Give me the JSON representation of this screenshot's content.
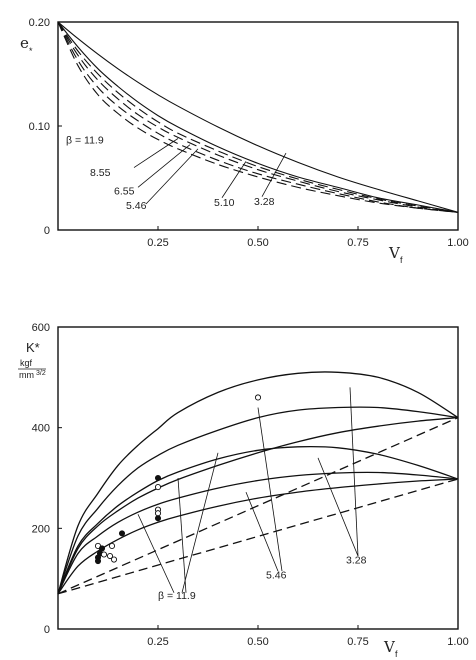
{
  "chart_data": [
    {
      "type": "line",
      "xlabel": "V",
      "xlabel_sub": "f",
      "ylabel": "e",
      "ylabel_sub": "*",
      "xlim": [
        0,
        1
      ],
      "ylim": [
        0,
        0.2
      ],
      "x_ticks": [
        "0.25",
        "0.50",
        "0.75",
        "1.00"
      ],
      "y_ticks": [
        "0",
        "0.10",
        "0.20"
      ],
      "series": [
        {
          "name": "β = 11.9",
          "style": "dashed",
          "x": [
            0,
            0.05,
            0.1,
            0.15,
            0.2,
            0.25,
            0.3,
            0.4,
            0.5,
            0.6,
            0.7,
            0.8,
            0.9,
            1.0
          ],
          "y": [
            0.2,
            0.158,
            0.13,
            0.112,
            0.098,
            0.087,
            0.078,
            0.063,
            0.051,
            0.041,
            0.033,
            0.026,
            0.021,
            0.017
          ]
        },
        {
          "name": "8.55",
          "style": "dashed",
          "x": [
            0,
            0.05,
            0.1,
            0.15,
            0.2,
            0.25,
            0.3,
            0.4,
            0.5,
            0.6,
            0.7,
            0.8,
            0.9,
            1.0
          ],
          "y": [
            0.2,
            0.163,
            0.137,
            0.119,
            0.105,
            0.093,
            0.083,
            0.067,
            0.054,
            0.044,
            0.035,
            0.027,
            0.021,
            0.017
          ]
        },
        {
          "name": "6.55",
          "style": "dashed",
          "x": [
            0,
            0.05,
            0.1,
            0.15,
            0.2,
            0.25,
            0.3,
            0.4,
            0.5,
            0.6,
            0.7,
            0.8,
            0.9,
            1.0
          ],
          "y": [
            0.2,
            0.168,
            0.144,
            0.126,
            0.111,
            0.099,
            0.089,
            0.072,
            0.058,
            0.047,
            0.037,
            0.029,
            0.022,
            0.017
          ]
        },
        {
          "name": "5.46",
          "style": "dashed",
          "x": [
            0,
            0.05,
            0.1,
            0.15,
            0.2,
            0.25,
            0.3,
            0.4,
            0.5,
            0.6,
            0.7,
            0.8,
            0.9,
            1.0
          ],
          "y": [
            0.2,
            0.172,
            0.15,
            0.132,
            0.117,
            0.104,
            0.093,
            0.076,
            0.061,
            0.049,
            0.039,
            0.03,
            0.023,
            0.017
          ]
        },
        {
          "name": "5.10",
          "style": "solid",
          "x": [
            0,
            0.05,
            0.1,
            0.15,
            0.2,
            0.25,
            0.3,
            0.4,
            0.5,
            0.6,
            0.7,
            0.8,
            0.9,
            1.0
          ],
          "y": [
            0.2,
            0.176,
            0.155,
            0.138,
            0.123,
            0.11,
            0.099,
            0.08,
            0.064,
            0.051,
            0.041,
            0.031,
            0.024,
            0.017
          ]
        },
        {
          "name": "3.28",
          "style": "solid",
          "x": [
            0,
            0.05,
            0.1,
            0.15,
            0.2,
            0.25,
            0.3,
            0.4,
            0.5,
            0.6,
            0.7,
            0.8,
            0.9,
            1.0
          ],
          "y": [
            0.2,
            0.184,
            0.169,
            0.155,
            0.142,
            0.13,
            0.119,
            0.099,
            0.081,
            0.065,
            0.051,
            0.039,
            0.028,
            0.017
          ]
        }
      ],
      "labels": [
        {
          "text": "β = 11.9",
          "x": 0.02,
          "y": 0.083
        },
        {
          "text": "8.55",
          "x": 0.08,
          "y": 0.052
        },
        {
          "text": "6.55",
          "x": 0.14,
          "y": 0.034
        },
        {
          "text": "5.46",
          "x": 0.17,
          "y": 0.02
        },
        {
          "text": "5.10",
          "x": 0.39,
          "y": 0.023
        },
        {
          "text": "3.28",
          "x": 0.49,
          "y": 0.024
        }
      ],
      "leaders": [
        {
          "from": [
            0.19,
            0.06
          ],
          "to": [
            0.3,
            0.088
          ]
        },
        {
          "from": [
            0.2,
            0.041
          ],
          "to": [
            0.33,
            0.082
          ]
        },
        {
          "from": [
            0.22,
            0.025
          ],
          "to": [
            0.35,
            0.078
          ]
        },
        {
          "from": [
            0.41,
            0.031
          ],
          "to": [
            0.47,
            0.066
          ]
        },
        {
          "from": [
            0.51,
            0.032
          ],
          "to": [
            0.57,
            0.074
          ]
        }
      ]
    },
    {
      "type": "line",
      "xlabel": "V",
      "xlabel_sub": "f",
      "ylabel": "K*",
      "yunit_num": "kgf",
      "yunit_den": "mm",
      "yunit_den_sup": "3/2",
      "xlim": [
        0,
        1
      ],
      "ylim": [
        0,
        600
      ],
      "x_ticks": [
        "0.25",
        "0.50",
        "0.75",
        "1.00"
      ],
      "y_ticks": [
        "0",
        "200",
        "400",
        "600"
      ],
      "series": [
        {
          "name": "3.28 upper",
          "style": "solid",
          "x": [
            0,
            0.05,
            0.1,
            0.15,
            0.2,
            0.25,
            0.3,
            0.4,
            0.5,
            0.6,
            0.7,
            0.8,
            0.9,
            1.0
          ],
          "y": [
            70,
            205,
            270,
            325,
            365,
            398,
            430,
            470,
            495,
            508,
            510,
            500,
            470,
            420
          ]
        },
        {
          "name": "5.46 upper",
          "style": "solid",
          "x": [
            0,
            0.05,
            0.1,
            0.15,
            0.2,
            0.25,
            0.3,
            0.4,
            0.5,
            0.6,
            0.7,
            0.8,
            0.9,
            1.0
          ],
          "y": [
            70,
            185,
            240,
            285,
            320,
            345,
            365,
            395,
            420,
            435,
            440,
            440,
            432,
            420
          ]
        },
        {
          "name": "11.9 upper",
          "style": "solid",
          "x": [
            0,
            0.05,
            0.1,
            0.15,
            0.2,
            0.25,
            0.3,
            0.4,
            0.5,
            0.6,
            0.7,
            0.8,
            0.9,
            1.0
          ],
          "y": [
            70,
            160,
            205,
            235,
            260,
            280,
            297,
            325,
            350,
            372,
            390,
            403,
            413,
            420
          ]
        },
        {
          "name": "3.28 lower",
          "style": "solid",
          "x": [
            0,
            0.05,
            0.1,
            0.15,
            0.2,
            0.25,
            0.3,
            0.4,
            0.5,
            0.6,
            0.7,
            0.8,
            0.9,
            1.0
          ],
          "y": [
            70,
            165,
            210,
            245,
            272,
            295,
            312,
            338,
            355,
            362,
            360,
            347,
            325,
            298
          ]
        },
        {
          "name": "5.46 lower",
          "style": "solid",
          "x": [
            0,
            0.05,
            0.1,
            0.15,
            0.2,
            0.25,
            0.3,
            0.4,
            0.5,
            0.6,
            0.7,
            0.8,
            0.9,
            1.0
          ],
          "y": [
            70,
            150,
            185,
            212,
            232,
            248,
            260,
            280,
            295,
            305,
            310,
            311,
            306,
            298
          ]
        },
        {
          "name": "11.9 lower",
          "style": "solid",
          "x": [
            0,
            0.05,
            0.1,
            0.15,
            0.2,
            0.25,
            0.3,
            0.4,
            0.5,
            0.6,
            0.7,
            0.8,
            0.9,
            1.0
          ],
          "y": [
            70,
            125,
            155,
            178,
            197,
            212,
            224,
            244,
            260,
            272,
            281,
            288,
            294,
            298
          ]
        },
        {
          "name": "dashed upper",
          "style": "dashed",
          "x": [
            0,
            1
          ],
          "y": [
            70,
            420
          ]
        },
        {
          "name": "dashed lower",
          "style": "dashed",
          "x": [
            0,
            1
          ],
          "y": [
            70,
            298
          ]
        }
      ],
      "points": [
        {
          "x": 0.1,
          "y": 165,
          "m": "open"
        },
        {
          "x": 0.11,
          "y": 160,
          "m": "filled"
        },
        {
          "x": 0.105,
          "y": 150,
          "m": "filled"
        },
        {
          "x": 0.1,
          "y": 142,
          "m": "filled"
        },
        {
          "x": 0.115,
          "y": 148,
          "m": "open"
        },
        {
          "x": 0.1,
          "y": 135,
          "m": "filled"
        },
        {
          "x": 0.13,
          "y": 145,
          "m": "open"
        },
        {
          "x": 0.14,
          "y": 138,
          "m": "open"
        },
        {
          "x": 0.135,
          "y": 165,
          "m": "open"
        },
        {
          "x": 0.16,
          "y": 190,
          "m": "filled"
        },
        {
          "x": 0.25,
          "y": 300,
          "m": "filled"
        },
        {
          "x": 0.25,
          "y": 282,
          "m": "open"
        },
        {
          "x": 0.25,
          "y": 237,
          "m": "open"
        },
        {
          "x": 0.25,
          "y": 230,
          "m": "open"
        },
        {
          "x": 0.25,
          "y": 220,
          "m": "filled"
        },
        {
          "x": 0.5,
          "y": 460,
          "m": "open"
        }
      ],
      "labels": [
        {
          "text": "β = 11.9",
          "x": 0.25,
          "y": 60
        },
        {
          "text": "5.46",
          "x": 0.52,
          "y": 100
        },
        {
          "text": "3.28",
          "x": 0.72,
          "y": 130
        }
      ],
      "leaders": [
        {
          "from": [
            0.29,
            72
          ],
          "to": [
            0.2,
            228
          ]
        },
        {
          "from": [
            0.31,
            72
          ],
          "to": [
            0.4,
            350
          ]
        },
        {
          "from": [
            0.32,
            72
          ],
          "to": [
            0.3,
            300
          ]
        },
        {
          "from": [
            0.55,
            115
          ],
          "to": [
            0.47,
            272
          ]
        },
        {
          "from": [
            0.56,
            115
          ],
          "to": [
            0.5,
            440
          ]
        },
        {
          "from": [
            0.75,
            145
          ],
          "to": [
            0.73,
            480
          ]
        },
        {
          "from": [
            0.75,
            145
          ],
          "to": [
            0.65,
            340
          ]
        }
      ]
    }
  ]
}
